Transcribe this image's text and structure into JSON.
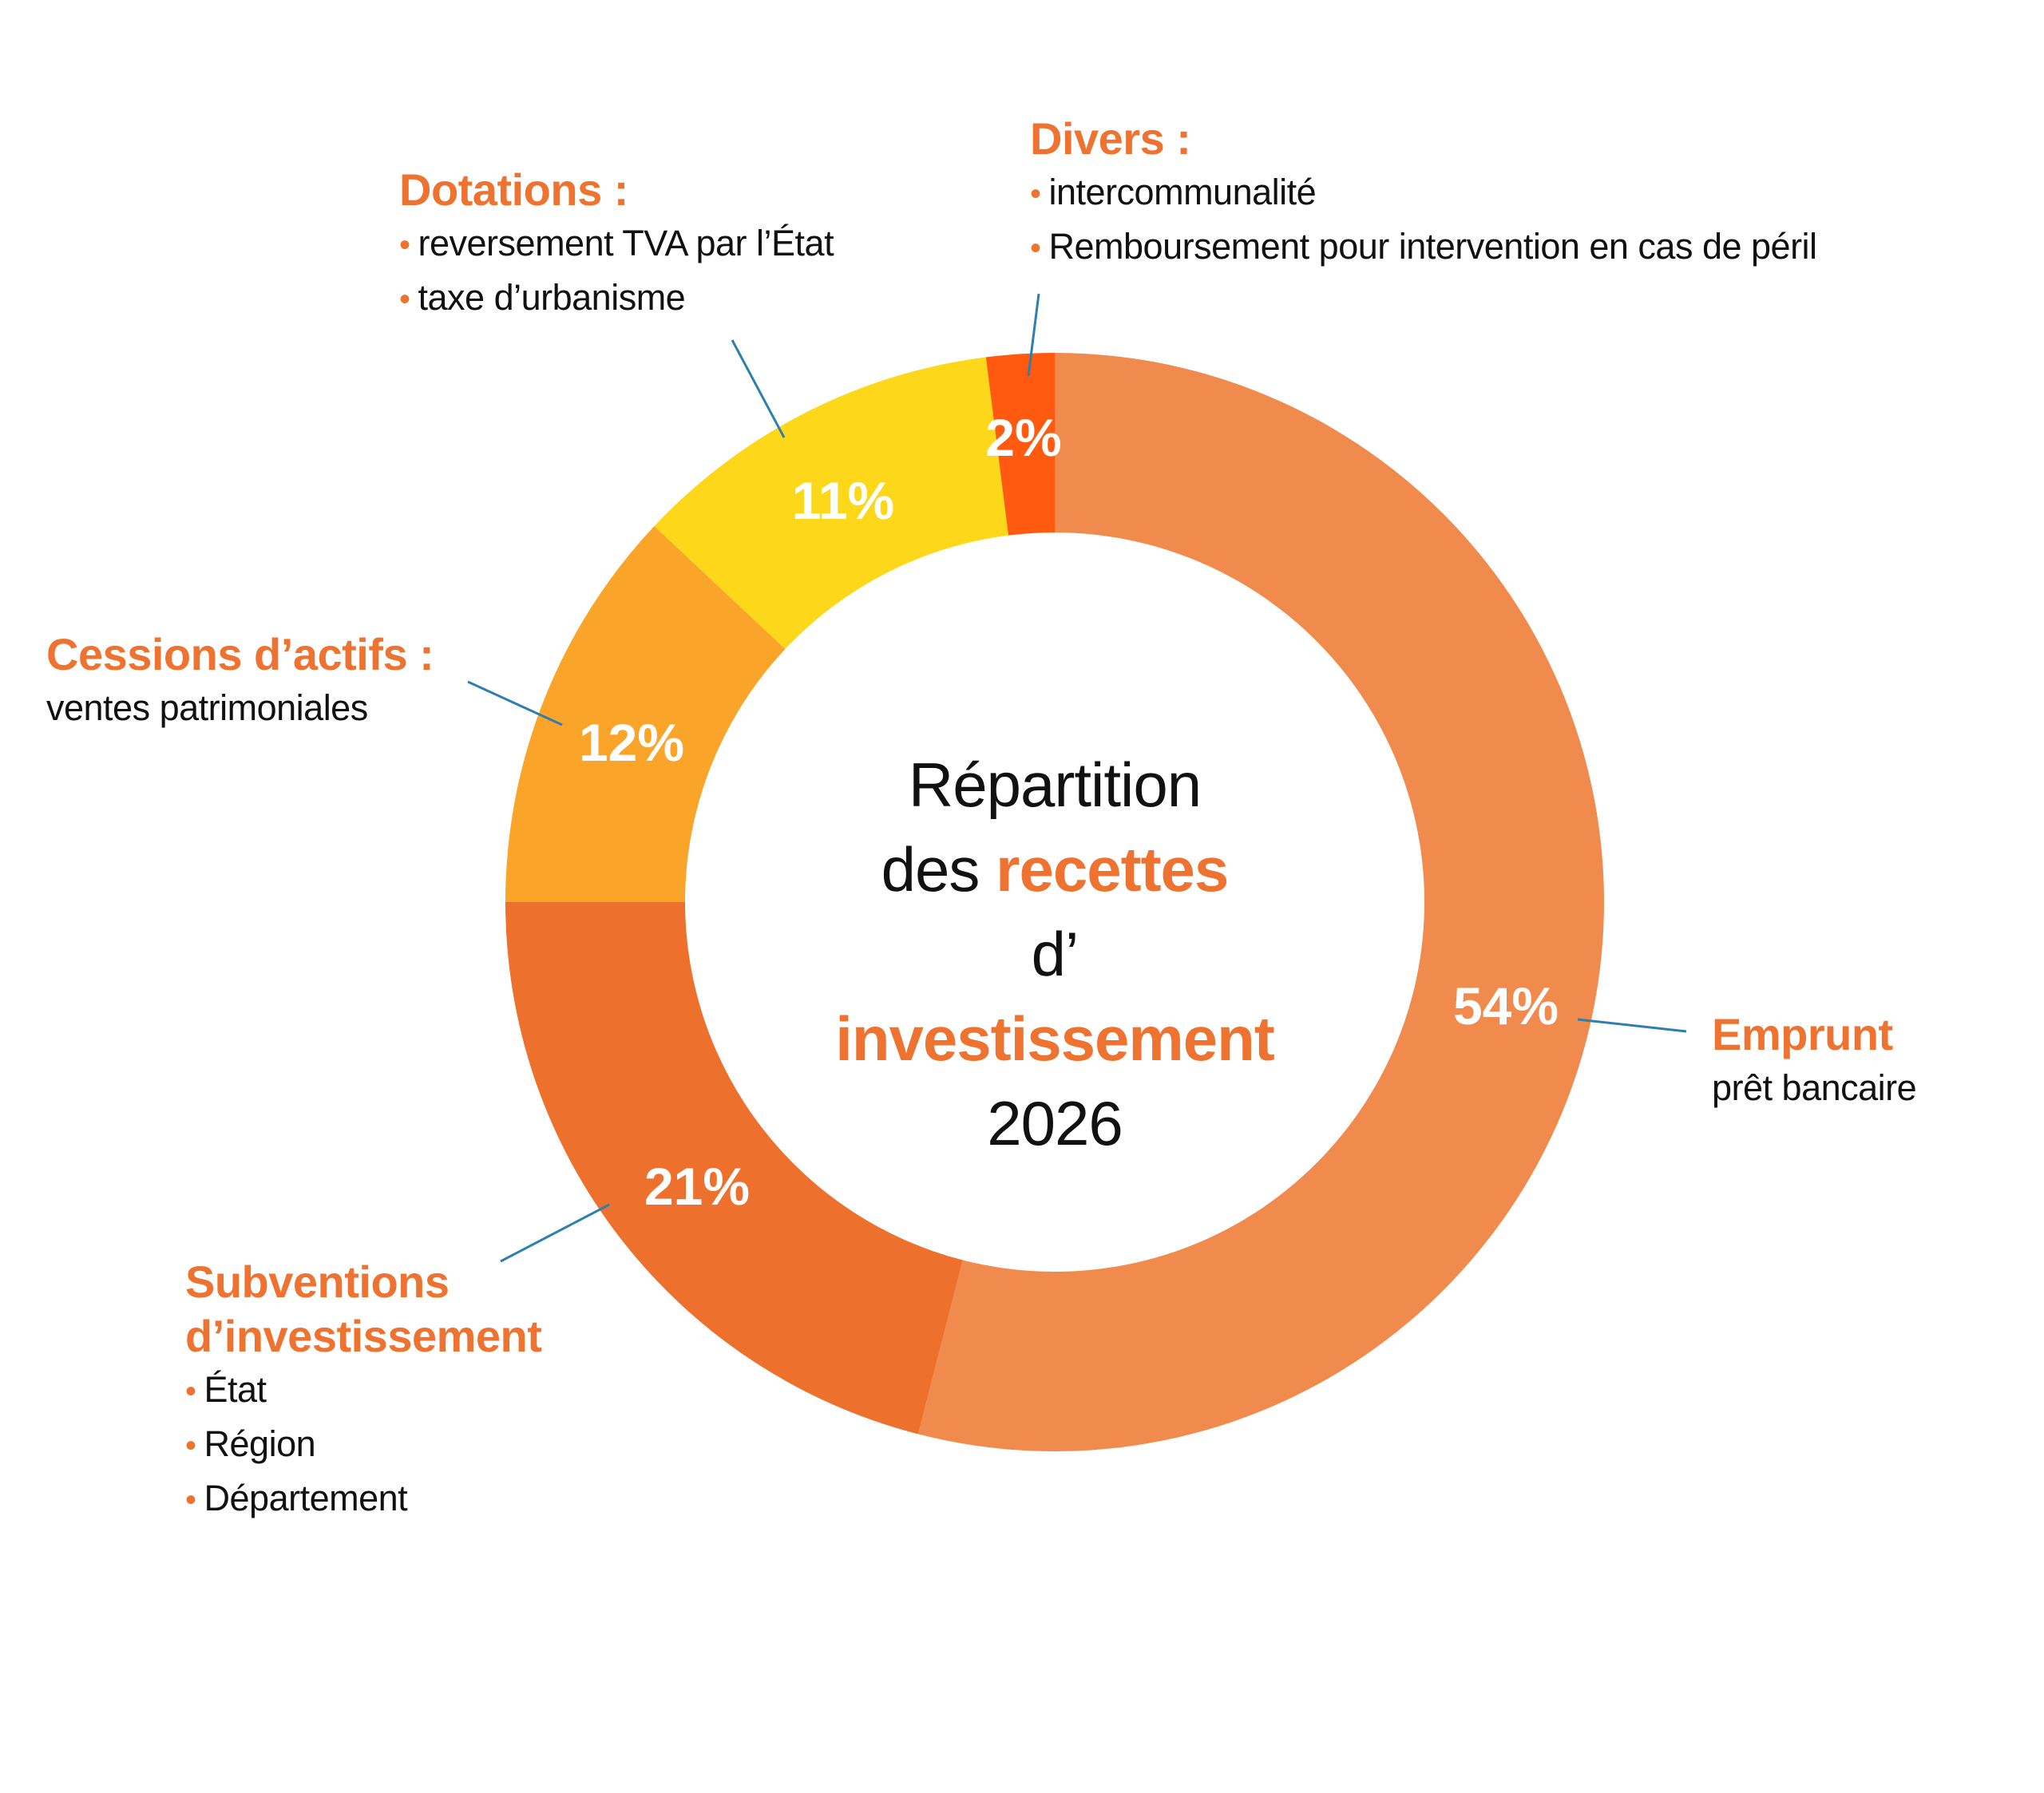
{
  "chart_data": {
    "type": "pie",
    "variant": "donut",
    "title": "Répartition des recettes d’investissement 2026",
    "title_parts": {
      "line1": "Répartition",
      "line2_prefix": "des ",
      "line2_highlight": "recettes",
      "line3_prefix": "d’ ",
      "line3_highlight": "investissement",
      "line4": "2026"
    },
    "unit": "%",
    "start": "top",
    "direction": "clockwise",
    "slices": [
      {
        "key": "emprunt",
        "label": "Emprunt",
        "value": 54,
        "value_label": "54%",
        "color": "#F08B4D",
        "details": [
          "prêt bancaire"
        ],
        "bulleted": false
      },
      {
        "key": "subventions",
        "label": "Subventions d’investissement",
        "label_lines": [
          "Subventions",
          "d’investissement"
        ],
        "value": 21,
        "value_label": "21%",
        "color": "#EE702D",
        "details": [
          "État",
          "Région",
          "Département"
        ],
        "bulleted": true
      },
      {
        "key": "cessions",
        "label": "Cessions d’actifs :",
        "value": 12,
        "value_label": "12%",
        "color": "#FBA42A",
        "details": [
          "ventes patrimoniales"
        ],
        "bulleted": false
      },
      {
        "key": "dotations",
        "label": "Dotations :",
        "value": 11,
        "value_label": "11%",
        "color": "#FDD71A",
        "details": [
          "reversement TVA par l’État",
          "taxe d’urbanisme"
        ],
        "bulleted": true
      },
      {
        "key": "divers",
        "label": "Divers :",
        "value": 2,
        "value_label": "2%",
        "color": "#FF5A0F",
        "details": [
          "intercommunalité",
          "Remboursement pour intervention en cas de péril"
        ],
        "bulleted": true
      }
    ],
    "legend": "none (callout labels around the ring)"
  },
  "colors": {
    "accent": "#EE7330",
    "leader_line": "#2F7FAE",
    "text": "#111111",
    "value_label": "#FFFFFF"
  },
  "bullet_glyph": "•"
}
